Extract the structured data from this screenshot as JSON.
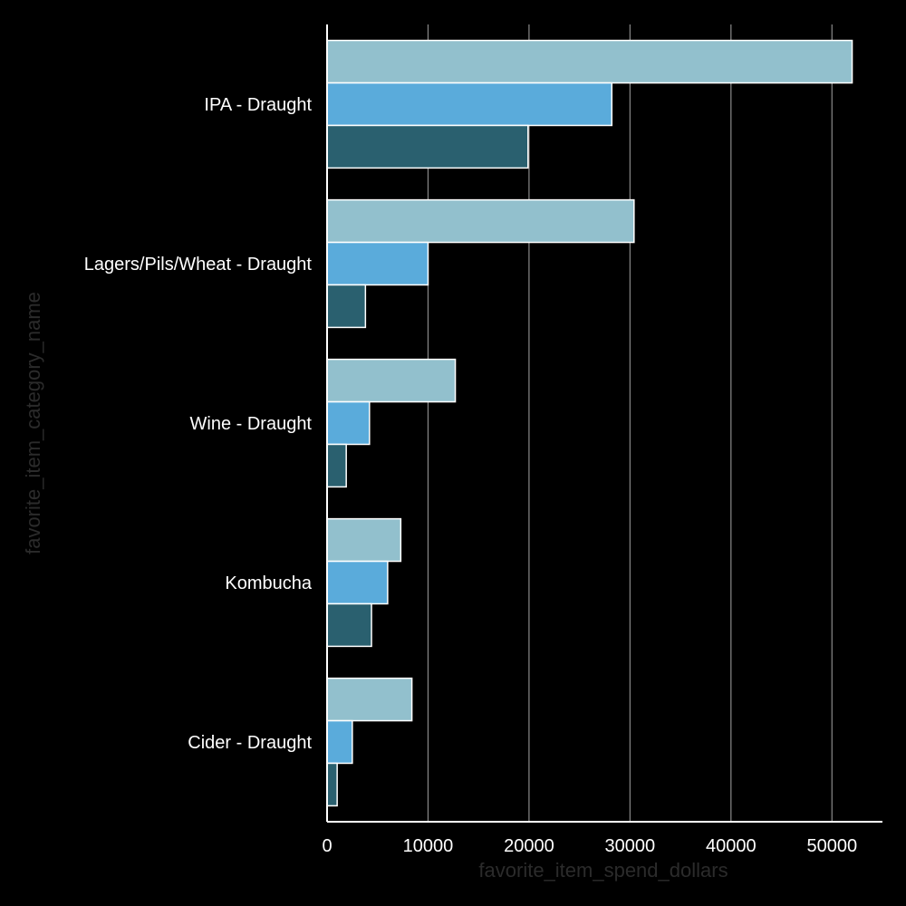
{
  "chart_data": {
    "type": "bar",
    "orientation": "horizontal",
    "categories": [
      "IPA - Draught",
      "Lagers/Pils/Wheat - Draught",
      "Wine - Draught",
      "Kombucha",
      "Cider - Draught"
    ],
    "series": [
      {
        "color": "#92c0cd",
        "values": [
          52000,
          30400,
          12700,
          7300,
          8400
        ]
      },
      {
        "color": "#5aabdb",
        "values": [
          28200,
          10000,
          4200,
          6000,
          2500
        ]
      },
      {
        "color": "#2a606f",
        "values": [
          19900,
          3800,
          1900,
          4400,
          1000
        ]
      }
    ],
    "xlabel": "favorite_item_spend_dollars",
    "ylabel": "favorite_item_category_name",
    "xlim": [
      0,
      55000
    ],
    "xticks": [
      0,
      10000,
      20000,
      30000,
      40000,
      50000
    ],
    "xtick_labels": [
      "0",
      "10000",
      "20000",
      "30000",
      "40000",
      "50000"
    ],
    "grid": "vertical",
    "legend": "none"
  }
}
